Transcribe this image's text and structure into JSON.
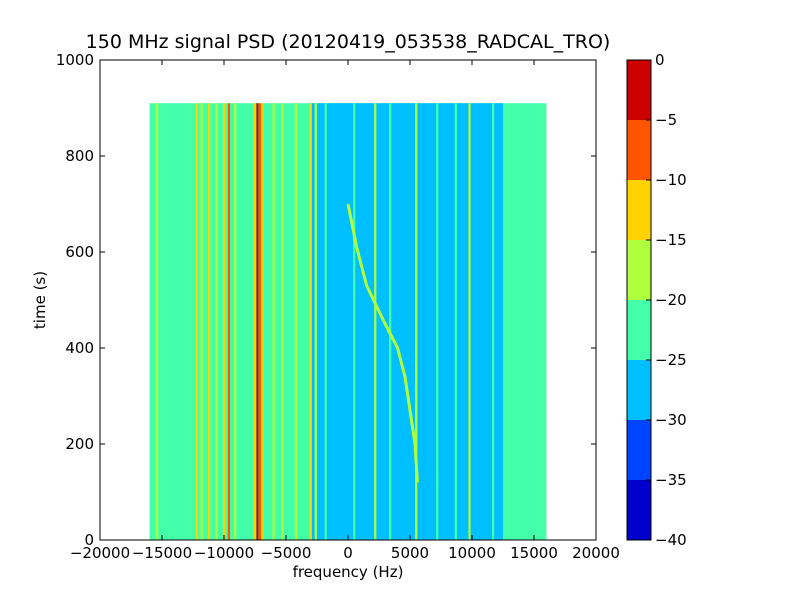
{
  "chart_data": {
    "type": "heatmap",
    "title": "150 MHz signal PSD (20120419_053538_RADCAL_TRO)",
    "xlabel": "frequency (Hz)",
    "ylabel": "time (s)",
    "xlim": [
      -20000,
      20000
    ],
    "ylim": [
      0,
      1000
    ],
    "x_ticks": [
      -20000,
      -15000,
      -10000,
      -5000,
      0,
      5000,
      10000,
      15000,
      20000
    ],
    "x_tick_labels": [
      "−20000",
      "−15000",
      "−10000",
      "−5000",
      "0",
      "5000",
      "10000",
      "15000",
      "20000"
    ],
    "y_ticks": [
      0,
      200,
      400,
      600,
      800,
      1000
    ],
    "y_tick_labels": [
      "0",
      "200",
      "400",
      "600",
      "800",
      "1000"
    ],
    "data_extent": {
      "x": [
        -16000,
        16000
      ],
      "y": [
        0,
        910
      ]
    },
    "colorbar": {
      "levels": [
        -40,
        -35,
        -30,
        -25,
        -20,
        -15,
        -10,
        -5,
        0
      ],
      "tick_labels": [
        "−40",
        "−35",
        "−30",
        "−25",
        "−20",
        "−15",
        "−10",
        "−5",
        "0"
      ],
      "colors": [
        "#0000cc",
        "#0044ff",
        "#00bfff",
        "#44ffaa",
        "#b0ff3c",
        "#ffd200",
        "#ff5500",
        "#cc0000"
      ]
    },
    "background_level": -22.5,
    "noise_floor_band": {
      "x": [
        -3000,
        12500
      ],
      "level": -27.5
    },
    "vertical_lines": [
      {
        "x": -15400,
        "level": -17.5
      },
      {
        "x": -12200,
        "level": -12.5
      },
      {
        "x": -11800,
        "level": -17.5
      },
      {
        "x": -11200,
        "level": -12.5
      },
      {
        "x": -10600,
        "level": -17.5
      },
      {
        "x": -10000,
        "level": -12.5
      },
      {
        "x": -9600,
        "level": -7.5
      },
      {
        "x": -9100,
        "level": -17.5
      },
      {
        "x": -7500,
        "level": -12.5
      },
      {
        "x": -7300,
        "level": -2.5
      },
      {
        "x": -7100,
        "level": -7.5
      },
      {
        "x": -6900,
        "level": -12.5
      },
      {
        "x": -6000,
        "level": -17.5
      },
      {
        "x": -5300,
        "level": -17.5
      },
      {
        "x": -4200,
        "level": -17.5
      },
      {
        "x": -3000,
        "level": -12.5
      },
      {
        "x": -2600,
        "level": -17.5
      },
      {
        "x": -1800,
        "level": -22.5
      },
      {
        "x": 500,
        "level": -22.5
      },
      {
        "x": 2200,
        "level": -17.5
      },
      {
        "x": 3400,
        "level": -22.5
      },
      {
        "x": 5500,
        "level": -17.5
      },
      {
        "x": 7200,
        "level": -22.5
      },
      {
        "x": 8700,
        "level": -22.5
      },
      {
        "x": 9800,
        "level": -17.5
      },
      {
        "x": 11700,
        "level": -22.5
      }
    ],
    "chirp_track": {
      "level": -17.5,
      "points": [
        {
          "x": 5600,
          "y": 120
        },
        {
          "x": 5400,
          "y": 200
        },
        {
          "x": 5000,
          "y": 270
        },
        {
          "x": 4600,
          "y": 340
        },
        {
          "x": 4000,
          "y": 400
        },
        {
          "x": 3000,
          "y": 450
        },
        {
          "x": 1500,
          "y": 530
        },
        {
          "x": 700,
          "y": 610
        },
        {
          "x": 0,
          "y": 700
        }
      ]
    }
  }
}
